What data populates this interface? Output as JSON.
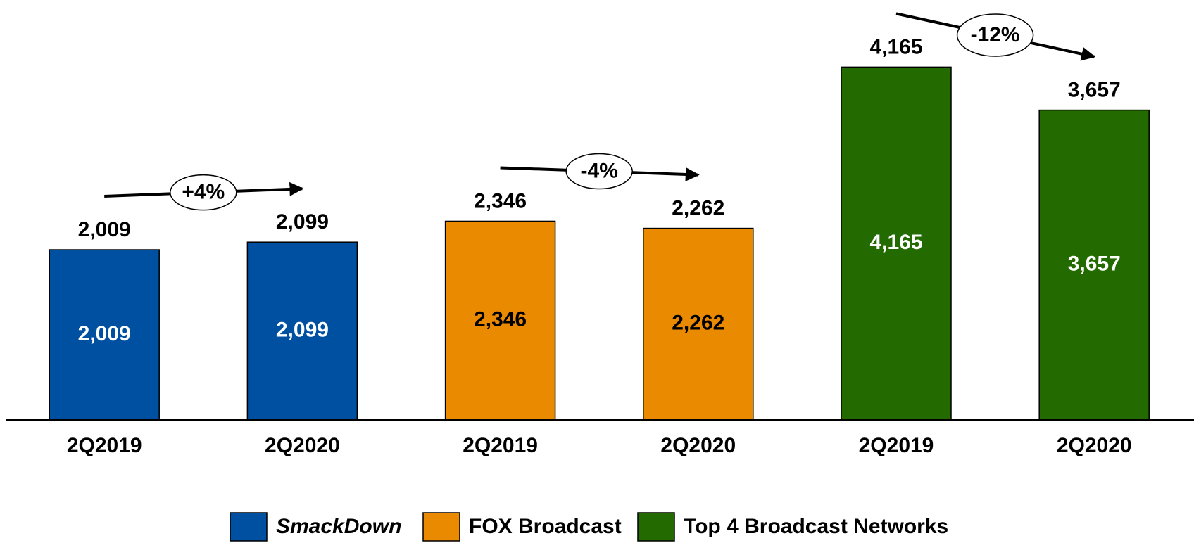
{
  "chart_data": {
    "type": "bar",
    "categories": [
      "2Q2019",
      "2Q2020",
      "2Q2019",
      "2Q2020",
      "2Q2019",
      "2Q2020"
    ],
    "series": [
      {
        "name": "SmackDown",
        "color": "#0050a2",
        "label_color": "#ffffff",
        "values": [
          2009,
          2099,
          null,
          null,
          null,
          null
        ],
        "value_labels": [
          "2,009",
          "2,099",
          null,
          null,
          null,
          null
        ]
      },
      {
        "name": "FOX Broadcast",
        "color": "#e98a00",
        "label_color": "#000000",
        "values": [
          null,
          null,
          2346,
          2262,
          null,
          null
        ],
        "value_labels": [
          null,
          null,
          "2,346",
          "2,262",
          null,
          null
        ]
      },
      {
        "name": "Top 4 Broadcast Networks",
        "color": "#236b00",
        "label_color": "#ffffff",
        "values": [
          null,
          null,
          null,
          null,
          4165,
          3657
        ],
        "value_labels": [
          null,
          null,
          null,
          null,
          "4,165",
          "3,657"
        ]
      }
    ],
    "annotations": [
      {
        "text": "+4%"
      },
      {
        "text": "-4%"
      },
      {
        "text": "-12%"
      }
    ],
    "ylim": [
      0,
      4600
    ]
  }
}
